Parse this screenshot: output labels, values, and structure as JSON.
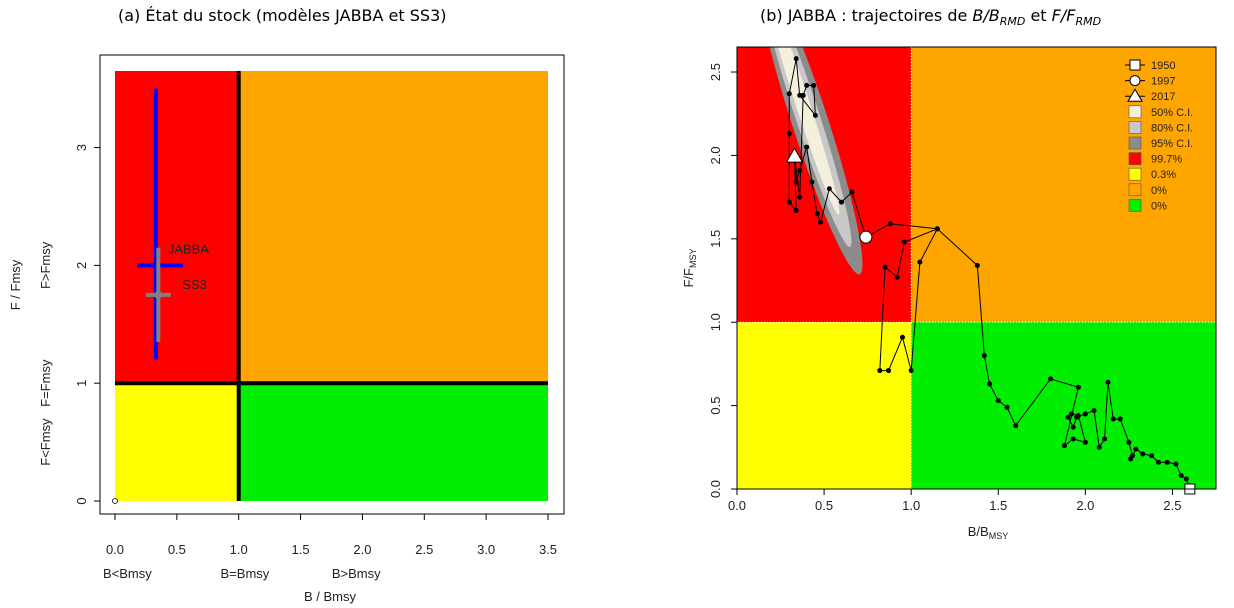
{
  "titles": {
    "a": "(a) État du stock (modèles JABBA et SS3)",
    "b_prefix": "(b) JABBA : trajectoires de ",
    "b_b": "B/B",
    "b_b_sub": "RMD",
    "b_mid": " et ",
    "b_f": "F/F",
    "b_f_sub": "RMD"
  },
  "chart_data": [
    {
      "type": "scatter",
      "panel": "a",
      "xlabel": "B / Bmsy",
      "ylabel": "F / Fmsy",
      "xlim": [
        0,
        3.5
      ],
      "ylim": [
        0,
        3.65
      ],
      "xticks": [
        "0.0",
        "0.5",
        "1.0",
        "1.5",
        "2.0",
        "2.5",
        "3.0",
        "3.5"
      ],
      "yticks": [
        "0",
        "1",
        "2",
        "3"
      ],
      "x_region_labels": [
        "B<Bmsy",
        "B=Bmsy",
        "B>Bmsy"
      ],
      "y_region_labels": [
        "F<Fmsy",
        "F=Fmsy",
        "F>Fmsy"
      ],
      "quadrants": {
        "top_left": "#ff0000",
        "top_right": "#ffa500",
        "bottom_left": "#ffff00",
        "bottom_right": "#00ee00"
      },
      "series": [
        {
          "name": "JABBA",
          "x": 0.33,
          "y": 2.0,
          "x_ci": [
            0.18,
            0.55
          ],
          "y_ci": [
            1.2,
            3.5
          ],
          "color": "#0000ff"
        },
        {
          "name": "SS3",
          "x": 0.35,
          "y": 1.75,
          "x_ci": [
            0.25,
            0.45
          ],
          "y_ci": [
            1.35,
            2.15
          ],
          "color": "#808080"
        }
      ]
    },
    {
      "type": "line",
      "panel": "b",
      "xlabel": "B/B",
      "xlabel_sub": "MSY",
      "ylabel": "F/F",
      "ylabel_sub": "MSY",
      "xlim": [
        0,
        2.75
      ],
      "ylim": [
        0,
        2.65
      ],
      "xticks": [
        "0.0",
        "0.5",
        "1.0",
        "1.5",
        "2.0",
        "2.5"
      ],
      "yticks": [
        "0.0",
        "0.5",
        "1.0",
        "1.5",
        "2.0",
        "2.5"
      ],
      "quadrants": {
        "top_left": "#ff0000",
        "top_right": "#ffa500",
        "bottom_left": "#ffff00",
        "bottom_right": "#00ee00"
      },
      "legend": [
        "1950",
        "1997",
        "2017",
        "50% C.I.",
        "80% C.I.",
        "95% C.I.",
        "99.7%",
        "0.3%",
        "0%",
        "0%"
      ],
      "legend_colors": [
        "#ffffff",
        "#ffffff",
        "#ffffff",
        "#f5f0dc",
        "#c8c8c8",
        "#8c8c8c",
        "#ff0000",
        "#ffff00",
        "#ffa500",
        "#00ee00"
      ],
      "trajectory": [
        [
          2.6,
          0.0
        ],
        [
          2.58,
          0.06
        ],
        [
          2.55,
          0.08
        ],
        [
          2.52,
          0.15
        ],
        [
          2.47,
          0.16
        ],
        [
          2.42,
          0.16
        ],
        [
          2.38,
          0.2
        ],
        [
          2.33,
          0.21
        ],
        [
          2.29,
          0.24
        ],
        [
          2.27,
          0.2
        ],
        [
          2.26,
          0.18
        ],
        [
          2.27,
          0.2
        ],
        [
          2.25,
          0.28
        ],
        [
          2.2,
          0.42
        ],
        [
          2.16,
          0.42
        ],
        [
          2.13,
          0.64
        ],
        [
          2.11,
          0.3
        ],
        [
          2.08,
          0.25
        ],
        [
          2.05,
          0.47
        ],
        [
          2.0,
          0.45
        ],
        [
          1.95,
          0.43
        ],
        [
          1.93,
          0.37
        ],
        [
          1.9,
          0.43
        ],
        [
          1.92,
          0.45
        ],
        [
          1.96,
          0.44
        ],
        [
          2.0,
          0.28
        ],
        [
          1.93,
          0.3
        ],
        [
          1.88,
          0.26
        ],
        [
          1.96,
          0.61
        ],
        [
          1.8,
          0.66
        ],
        [
          1.6,
          0.38
        ],
        [
          1.55,
          0.49
        ],
        [
          1.5,
          0.53
        ],
        [
          1.45,
          0.63
        ],
        [
          1.42,
          0.8
        ],
        [
          1.38,
          1.34
        ],
        [
          1.15,
          1.56
        ],
        [
          1.05,
          1.36
        ],
        [
          1.0,
          0.71
        ],
        [
          0.95,
          0.91
        ],
        [
          0.87,
          0.71
        ],
        [
          0.82,
          0.71
        ],
        [
          0.85,
          1.33
        ],
        [
          0.92,
          1.27
        ],
        [
          0.96,
          1.48
        ],
        [
          1.15,
          1.56
        ],
        [
          0.88,
          1.59
        ],
        [
          0.74,
          1.51
        ],
        [
          0.66,
          1.78
        ],
        [
          0.6,
          1.72
        ],
        [
          0.53,
          1.8
        ],
        [
          0.48,
          1.6
        ],
        [
          0.46,
          1.65
        ],
        [
          0.43,
          1.84
        ],
        [
          0.4,
          2.05
        ],
        [
          0.36,
          1.91
        ],
        [
          0.34,
          1.84
        ],
        [
          0.33,
          1.99
        ],
        [
          0.36,
          1.75
        ],
        [
          0.38,
          2.36
        ],
        [
          0.4,
          2.42
        ],
        [
          0.44,
          2.42
        ],
        [
          0.45,
          2.24
        ],
        [
          0.36,
          2.36
        ],
        [
          0.34,
          2.58
        ],
        [
          0.3,
          2.37
        ],
        [
          0.3,
          2.13
        ],
        [
          0.3,
          1.72
        ],
        [
          0.34,
          1.67
        ],
        [
          0.33,
          1.99
        ]
      ],
      "markers": {
        "1950": [
          2.6,
          0.0
        ],
        "1997": [
          0.74,
          1.51
        ],
        "2017": [
          0.33,
          1.99
        ]
      }
    }
  ]
}
